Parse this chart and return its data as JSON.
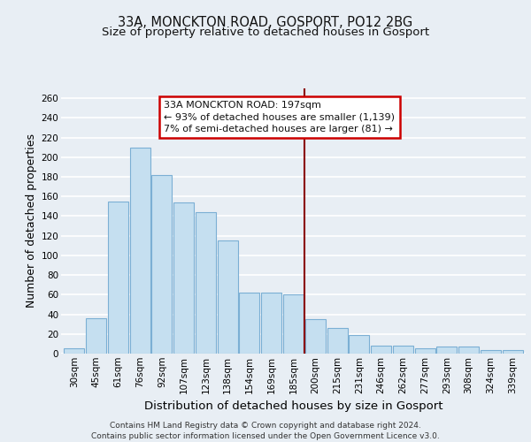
{
  "title1": "33A, MONCKTON ROAD, GOSPORT, PO12 2BG",
  "title2": "Size of property relative to detached houses in Gosport",
  "xlabel": "Distribution of detached houses by size in Gosport",
  "ylabel": "Number of detached properties",
  "categories": [
    "30sqm",
    "45sqm",
    "61sqm",
    "76sqm",
    "92sqm",
    "107sqm",
    "123sqm",
    "138sqm",
    "154sqm",
    "169sqm",
    "185sqm",
    "200sqm",
    "215sqm",
    "231sqm",
    "246sqm",
    "262sqm",
    "277sqm",
    "293sqm",
    "308sqm",
    "324sqm",
    "339sqm"
  ],
  "values": [
    5,
    36,
    155,
    210,
    182,
    154,
    144,
    115,
    62,
    62,
    60,
    35,
    26,
    19,
    8,
    8,
    5,
    7,
    7,
    4,
    4
  ],
  "bar_color": "#c5dff0",
  "bar_edge_color": "#7bafd4",
  "vline_color": "#8B0000",
  "annotation_title": "33A MONCKTON ROAD: 197sqm",
  "annotation_line1": "← 93% of detached houses are smaller (1,139)",
  "annotation_line2": "7% of semi-detached houses are larger (81) →",
  "annotation_box_color": "#cc0000",
  "ylim": [
    0,
    270
  ],
  "yticks": [
    0,
    20,
    40,
    60,
    80,
    100,
    120,
    140,
    160,
    180,
    200,
    220,
    240,
    260
  ],
  "footer": "Contains HM Land Registry data © Crown copyright and database right 2024.\nContains public sector information licensed under the Open Government Licence v3.0.",
  "bg_color": "#e8eef4",
  "grid_color": "#ffffff",
  "title_fontsize": 10.5,
  "subtitle_fontsize": 9.5,
  "ylabel_fontsize": 9,
  "xlabel_fontsize": 9.5,
  "tick_fontsize": 7.5,
  "annot_fontsize": 8,
  "footer_fontsize": 6.5
}
